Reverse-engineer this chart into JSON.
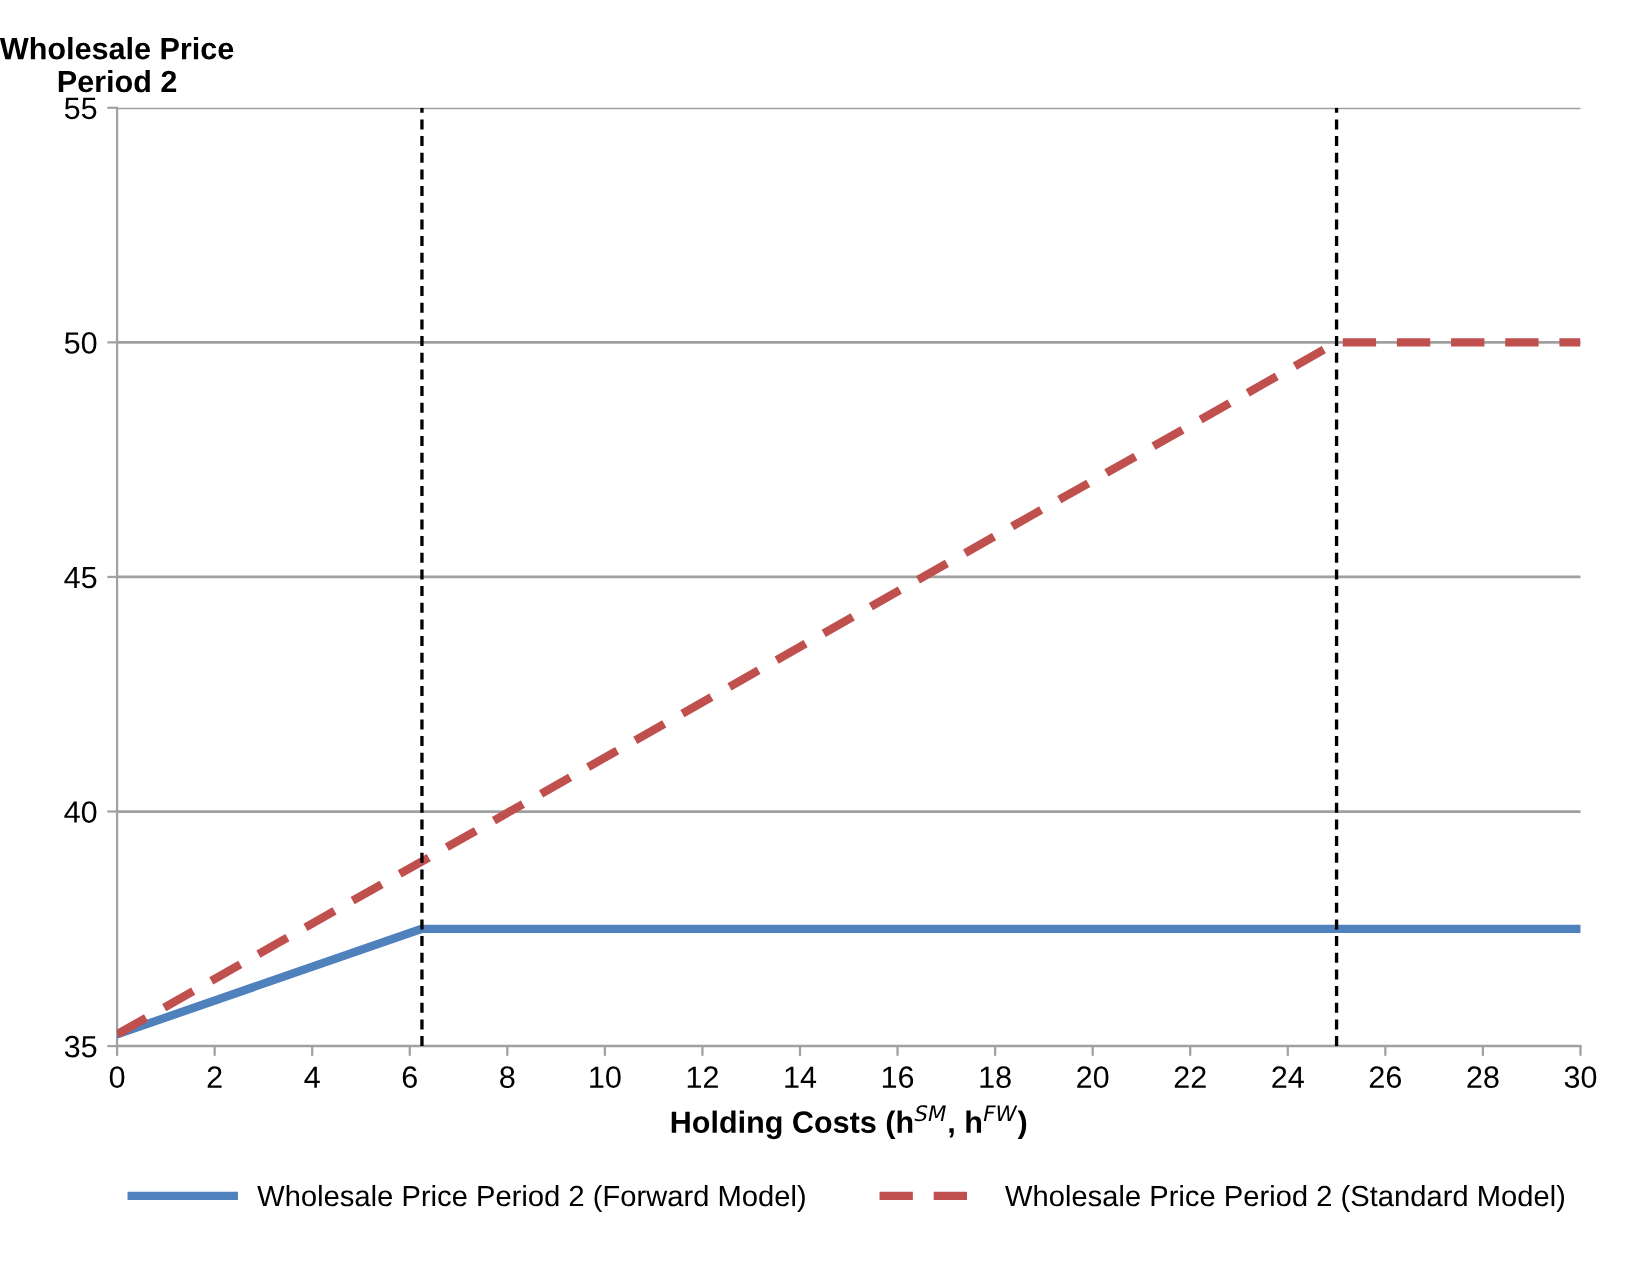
{
  "chart_data": {
    "type": "line",
    "ylabel": "Wholesale Price\nPeriod 2",
    "xlabel": "Holding Costs (h$^{SM}$, h$^{FW}$)",
    "xlim": [
      0,
      30
    ],
    "xticks": [
      0,
      2,
      4,
      6,
      8,
      10,
      12,
      14,
      16,
      18,
      20,
      22,
      24,
      26,
      28,
      30
    ],
    "ylim": [
      35,
      55
    ],
    "yticks": [
      35,
      40,
      45,
      50,
      55
    ],
    "grid": "y",
    "legend": "bottom",
    "marker": "none",
    "series": [
      {
        "name": "Wholesale Price Period 2 (Forward Model)",
        "color": "#4f81bd",
        "line_style": "solid",
        "x": [
          0,
          6.25,
          30
        ],
        "values": [
          35.25,
          37.5,
          37.5
        ]
      },
      {
        "name": "Wholesale Price Period 2 (Standard Model)",
        "color": "#c0504d",
        "line_style": "dashed",
        "x": [
          0,
          25,
          30
        ],
        "values": [
          35.25,
          50,
          50
        ]
      }
    ],
    "ref_lines": [
      {
        "axis": "x",
        "value": 6.25,
        "color": "#000000",
        "line_style": "dashed"
      },
      {
        "axis": "x",
        "value": 25,
        "color": "#000000",
        "line_style": "dashed"
      }
    ]
  }
}
